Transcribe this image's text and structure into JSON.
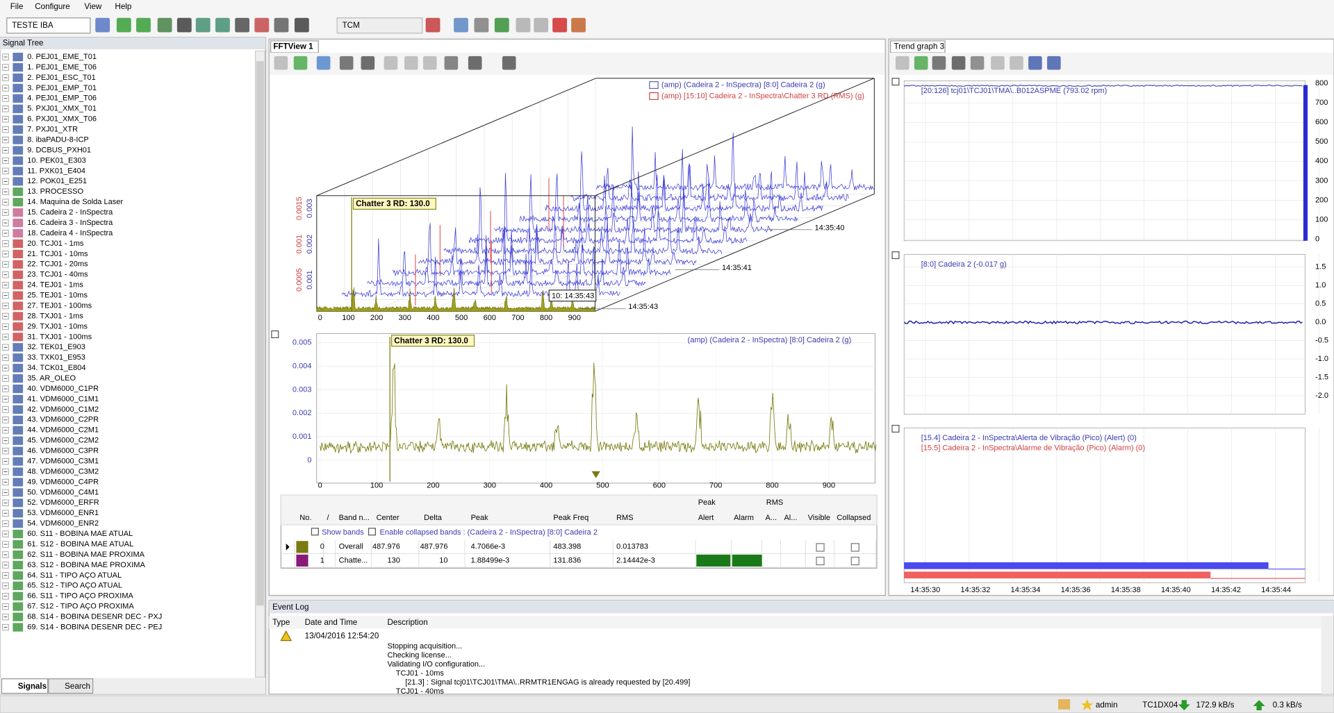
{
  "menu": [
    "File",
    "Configure",
    "View",
    "Help"
  ],
  "toolbar": {
    "profile": "TESTE IBA",
    "mode": "TCM"
  },
  "signal_tree": {
    "title": "Signal Tree",
    "items": [
      "0. PEJ01_EME_T01",
      "1. PEJ01_EME_T06",
      "2. PEJ01_ESC_T01",
      "3. PEJ01_EMP_T01",
      "4. PEJ01_EMP_T06",
      "5. PXJ01_XMX_T01",
      "6. PXJ01_XMX_T06",
      "7. PXJ01_XTR",
      "8. ibaPADU-8-ICP",
      "9. DCBUS_PXH01",
      "10. PEK01_E303",
      "11. PXK01_E404",
      "12. POK01_E251",
      "13. PROCESSO",
      "14. Maquina de Solda Laser",
      "15. Cadeira 2 - InSpectra",
      "16. Cadeira 3 - InSpectra",
      "18. Cadeira 4 - InSpectra",
      "20. TCJ01 - 1ms",
      "21. TCJ01 - 10ms",
      "22. TCJ01 - 20ms",
      "23. TCJ01 - 40ms",
      "24. TEJ01 - 1ms",
      "25. TEJ01 - 10ms",
      "27. TEJ01 - 100ms",
      "28. TXJ01 - 1ms",
      "29. TXJ01 - 10ms",
      "31. TXJ01 - 100ms",
      "32. TEK01_E903",
      "33. TXK01_E953",
      "34. TCK01_E804",
      "35. AR_OLEO",
      "40. VDM6000_C1PR",
      "41. VDM6000_C1M1",
      "42. VDM6000_C1M2",
      "43. VDM6000_C2PR",
      "44. VDM6000_C2M1",
      "45. VDM6000_C2M2",
      "46. VDM6000_C3PR",
      "47. VDM6000_C3M1",
      "48. VDM6000_C3M2",
      "49. VDM6000_C4PR",
      "50. VDM6000_C4M1",
      "52. VDM6000_ERFR",
      "53. VDM6000_ENR1",
      "54. VDM6000_ENR2",
      "60. S11 - BOBINA MAE ATUAL",
      "61. S12 - BOBINA MAE ATUAL",
      "62. S11 - BOBINA MAE PROXIMA",
      "63. S12 - BOBINA MAE PROXIMA",
      "64. S11 - TIPO AÇO ATUAL",
      "65. S12 - TIPO AÇO ATUAL",
      "66. S11 - TIPO AÇO PROXIMA",
      "67. S12 - TIPO AÇO PROXIMA",
      "68. S14 - BOBINA DESENR DEC - PXJ",
      "69. S14 - BOBINA DESENR DEC - PEJ"
    ],
    "tabs": [
      "Signals",
      "Search"
    ]
  },
  "fft_view": {
    "tab": "FFTView 1",
    "legend_3d": [
      "(amp) (Cadeira 2 - InSpectra) [8:0] Cadeira 2 (g)",
      "(amp) [15:10] Cadeira 2 - InSpectra\\Chatter 3 RD (RMS) (g)"
    ],
    "marker_3d": "Chatter 3 RD: 130.0",
    "times": [
      "14:35:40",
      "14:35:41",
      "14:35:43"
    ],
    "cursor_time": "10: 14:35:43",
    "x_ticks": [
      "0",
      "100",
      "200",
      "300",
      "400",
      "500",
      "600",
      "700",
      "800",
      "900"
    ],
    "y_ticks_red": [
      "0.0015",
      "0.001",
      "0.0005"
    ],
    "y_ticks_blue": [
      "0.003",
      "0.002",
      "0.001"
    ],
    "legend_2d": "(amp) (Cadeira 2 - InSpectra) [8:0] Cadeira 2 (g)",
    "marker_2d": "Chatter 3 RD: 130.0",
    "y_ticks_2d": [
      "0.005",
      "0.004",
      "0.003",
      "0.002",
      "0.001",
      "0"
    ],
    "table": {
      "group_headers": [
        "Peak",
        "RMS"
      ],
      "columns": [
        "No.",
        "/",
        "Band n...",
        "Center",
        "Delta",
        "Peak",
        "Peak Freq",
        "RMS",
        "Alert",
        "Alarm",
        "A...",
        "Al...",
        "Visible",
        "Collapsed"
      ],
      "filter": [
        "Show bands",
        "Enable collapsed bands  : (Cadeira 2 - InSpectra) [8:0] Cadeira 2"
      ],
      "rows": [
        [
          "0",
          "Overall",
          "487.976",
          "487.976",
          "4.7066e-3",
          "483.398",
          "0.013783"
        ],
        [
          "1",
          "Chatte...",
          "130",
          "10",
          "1.88499e-3",
          "131.836",
          "2.14442e-3"
        ]
      ]
    }
  },
  "trend": {
    "tab": "Trend graph 3",
    "graphs": [
      {
        "legend": [
          "[20:126] tcj01\\TCJ01\\TMA\\..B012ASPME (793.02 rpm)"
        ],
        "y_ticks": [
          "800",
          "700",
          "600",
          "500",
          "400",
          "300",
          "200",
          "100",
          "0"
        ]
      },
      {
        "legend": [
          "[8:0] Cadeira 2 (-0.017 g)"
        ],
        "y_ticks": [
          "1.5",
          "1.0",
          "0.5",
          "0.0",
          "-0.5",
          "-1.0",
          "-1.5",
          "-2.0"
        ]
      },
      {
        "legend": [
          "[15.4] Cadeira 2 - InSpectra\\Alerta de Vibração (Pico) (Alert) (0)",
          "[15.5] Cadeira 2 - InSpectra\\Alarme de Vibração (Pico) (Alarm) (0)"
        ],
        "y_ticks": []
      }
    ],
    "x_ticks": [
      "14:35:30",
      "14:35:32",
      "14:35:34",
      "14:35:36",
      "14:35:38",
      "14:35:40",
      "14:35:42",
      "14:35:44"
    ]
  },
  "event_log": {
    "title": "Event Log",
    "columns": [
      "Type",
      "Date and Time",
      "Description"
    ],
    "rows": [
      {
        "time": "13/04/2016 12:54:20",
        "lines": [
          "Stopping acquisition...",
          "Checking license...",
          "Validating I/O configuration...",
          "TCJ01 - 10ms",
          "[21.3] : Signal tcj01\\TCJ01\\TMA\\..RRMTR1ENGAG is already requested by [20.499]",
          "TCJ01 - 40ms"
        ]
      }
    ]
  },
  "status": {
    "user": "admin",
    "host": "TC1DX04",
    "down": "172.9 kB/s",
    "up": "0.3 kB/s"
  }
}
